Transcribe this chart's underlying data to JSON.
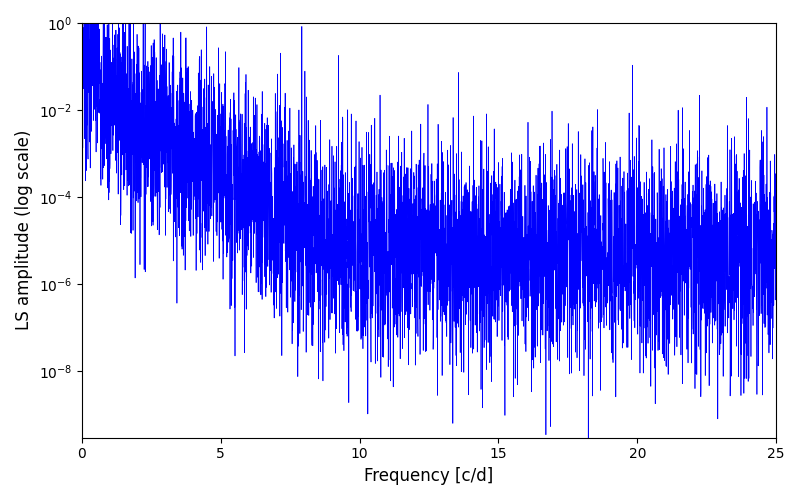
{
  "xlabel": "Frequency [c/d]",
  "ylabel": "LS amplitude (log scale)",
  "xlim": [
    0,
    25
  ],
  "ylim": [
    3e-10,
    1.0
  ],
  "line_color": "#0000ff",
  "line_width": 0.5,
  "figsize": [
    8.0,
    5.0
  ],
  "dpi": 100,
  "background_color": "#ffffff",
  "freq_max": 25.0,
  "n_points": 5000,
  "seed": 7
}
